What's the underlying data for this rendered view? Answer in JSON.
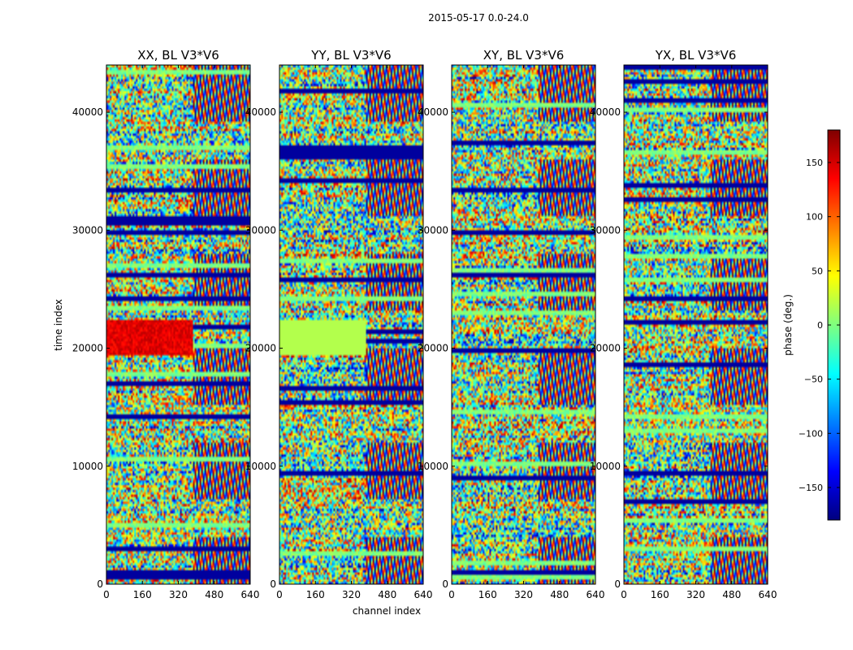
{
  "figure": {
    "suptitle": "2015-05-17 0.0-24.0",
    "xlabel": "channel index",
    "ylabel": "time index"
  },
  "colorbar": {
    "label": "phase (deg.)",
    "range": [
      -180,
      180
    ],
    "ticks": [
      -150,
      -100,
      -50,
      0,
      50,
      100,
      150
    ],
    "tick_labels": [
      "−150",
      "−100",
      "−50",
      "0",
      "50",
      "100",
      "150"
    ],
    "colormap": "jet",
    "colors": [
      "#00007f",
      "#0000ff",
      "#007fff",
      "#00ffff",
      "#7fff7f",
      "#ffff00",
      "#ff7f00",
      "#ff0000",
      "#7f0000"
    ]
  },
  "chart_data": [
    {
      "type": "heatmap",
      "title": "XX, BL V3*V6",
      "xlabel": "channel index",
      "ylabel": "time index",
      "xlim": [
        0,
        640
      ],
      "ylim": [
        0,
        44000
      ],
      "xticks": [
        0,
        160,
        320,
        480,
        640
      ],
      "yticks": [
        0,
        10000,
        20000,
        30000,
        40000
      ],
      "value": "phase (deg.)",
      "value_range": [
        -180,
        180
      ]
    },
    {
      "type": "heatmap",
      "title": "YY, BL V3*V6",
      "xlabel": "channel index",
      "ylabel": "time index",
      "xlim": [
        0,
        640
      ],
      "ylim": [
        0,
        44000
      ],
      "xticks": [
        0,
        160,
        320,
        480,
        640
      ],
      "yticks": [
        0,
        10000,
        20000,
        30000,
        40000
      ],
      "value": "phase (deg.)",
      "value_range": [
        -180,
        180
      ]
    },
    {
      "type": "heatmap",
      "title": "XY, BL V3*V6",
      "xlabel": "channel index",
      "ylabel": "time index",
      "xlim": [
        0,
        640
      ],
      "ylim": [
        0,
        44000
      ],
      "xticks": [
        0,
        160,
        320,
        480,
        640
      ],
      "yticks": [
        0,
        10000,
        20000,
        30000,
        40000
      ],
      "value": "phase (deg.)",
      "value_range": [
        -180,
        180
      ]
    },
    {
      "type": "heatmap",
      "title": "YX, BL V3*V6",
      "xlabel": "channel index",
      "ylabel": "time index",
      "xlim": [
        0,
        640
      ],
      "ylim": [
        0,
        44000
      ],
      "xticks": [
        0,
        160,
        320,
        480,
        640
      ],
      "yticks": [
        0,
        10000,
        20000,
        30000,
        40000
      ],
      "value": "phase (deg.)",
      "value_range": [
        -180,
        180
      ]
    }
  ]
}
